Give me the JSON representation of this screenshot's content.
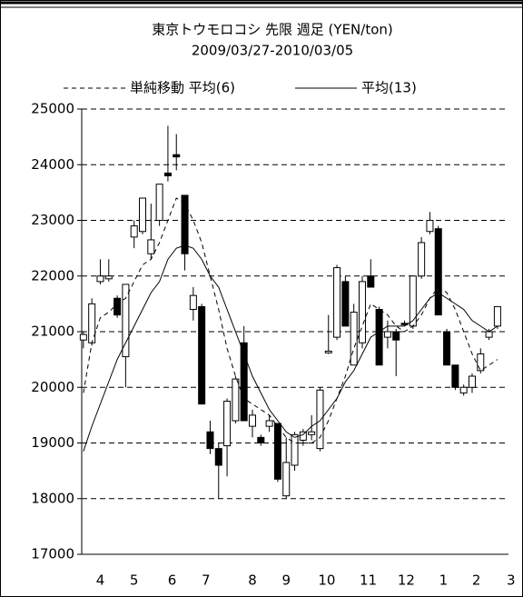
{
  "chart_data": {
    "type": "candlestick",
    "title": "東京トウモロコシ 先限 週足 (YEN/ton)",
    "subtitle": "2009/03/27-2010/03/05",
    "ylim": [
      17000,
      25000
    ],
    "yticks": [
      17000,
      18000,
      19000,
      20000,
      21000,
      22000,
      23000,
      24000,
      25000
    ],
    "xlim": [
      -0.2,
      50.3
    ],
    "xticks": [
      {
        "value": 2,
        "label": "4"
      },
      {
        "value": 6,
        "label": "5"
      },
      {
        "value": 10.5,
        "label": "6"
      },
      {
        "value": 14.5,
        "label": "7"
      },
      {
        "value": 20,
        "label": "8"
      },
      {
        "value": 24,
        "label": "9"
      },
      {
        "value": 28.8,
        "label": "10"
      },
      {
        "value": 33.7,
        "label": "11"
      },
      {
        "value": 38.2,
        "label": "12"
      },
      {
        "value": 42.6,
        "label": "1"
      },
      {
        "value": 46.5,
        "label": "2"
      },
      {
        "value": 50.6,
        "label": "3"
      }
    ],
    "grid": true,
    "up_color": "#ffffff",
    "down_color": "#000000",
    "open": [
      20850,
      20800,
      21900,
      21950,
      21600,
      20550,
      22700,
      22800,
      22400,
      23000,
      23850,
      24180,
      23450,
      21400,
      21450,
      19200,
      18900,
      18950,
      19400,
      20800,
      19300,
      19100,
      19300,
      19350,
      18050,
      18600,
      19050,
      19150,
      18900,
      20620,
      20900,
      21900,
      20400,
      20800,
      22000,
      21400,
      20900,
      21000,
      21150,
      21100,
      22000,
      22800,
      22850,
      21000,
      20400,
      19900,
      20000,
      20300,
      20900,
      21100
    ],
    "high": [
      21000,
      21600,
      22300,
      22300,
      21650,
      21850,
      23000,
      23400,
      23300,
      23650,
      24700,
      24550,
      23450,
      21800,
      21500,
      19400,
      19000,
      19800,
      20200,
      21100,
      19600,
      19150,
      19500,
      19350,
      19100,
      19200,
      19250,
      19500,
      20000,
      21300,
      22200,
      22000,
      21500,
      22000,
      22300,
      21450,
      21200,
      21050,
      21200,
      22000,
      22700,
      23150,
      22900,
      21050,
      20400,
      20050,
      20250,
      20700,
      21050,
      21450
    ],
    "low": [
      20700,
      20750,
      21850,
      21900,
      21250,
      20000,
      22500,
      22750,
      22300,
      22900,
      23700,
      23900,
      22100,
      21200,
      19700,
      18800,
      18000,
      18400,
      19350,
      19400,
      19100,
      18950,
      19200,
      18300,
      18000,
      18500,
      18950,
      19050,
      18850,
      20600,
      20850,
      21100,
      20400,
      20700,
      21800,
      20400,
      20700,
      20200,
      21100,
      21050,
      21950,
      22750,
      21300,
      20400,
      19950,
      19850,
      19900,
      20250,
      20850,
      21050
    ],
    "close": [
      20950,
      21500,
      22000,
      22000,
      21300,
      21850,
      22900,
      23400,
      22650,
      23650,
      23800,
      24140,
      22400,
      21650,
      19700,
      18900,
      18600,
      19750,
      20150,
      19400,
      19500,
      19000,
      19400,
      18350,
      18650,
      19150,
      19200,
      19200,
      19950,
      20650,
      22150,
      21100,
      21350,
      21900,
      21800,
      20400,
      21000,
      20850,
      21140,
      22000,
      22600,
      23000,
      21300,
      20400,
      20000,
      20000,
      20200,
      20600,
      21000,
      21450
    ],
    "series": [
      {
        "name": "単純移動 平均(6)",
        "color": "#000000",
        "dash": true,
        "values": [
          19900,
          20800,
          21250,
          21350,
          21500,
          21600,
          21900,
          22200,
          22300,
          22600,
          23000,
          23400,
          23300,
          23000,
          22600,
          22000,
          21400,
          20700,
          20200,
          19800,
          19700,
          19600,
          19500,
          19300,
          19100,
          19000,
          19000,
          19000,
          19100,
          19400,
          19800,
          20200,
          20700,
          21100,
          21500,
          21400,
          21300,
          21100,
          21000,
          21100,
          21300,
          21600,
          21800,
          21700,
          21400,
          21000,
          20600,
          20300,
          20400,
          20500
        ]
      },
      {
        "name": "平均(13)",
        "color": "#000000",
        "dash": false,
        "values": [
          18850,
          19300,
          19700,
          20100,
          20500,
          20800,
          21100,
          21400,
          21700,
          21900,
          22300,
          22500,
          22550,
          22500,
          22300,
          22000,
          21800,
          21400,
          21000,
          20600,
          20200,
          19900,
          19600,
          19400,
          19200,
          19100,
          19150,
          19300,
          19400,
          19600,
          19800,
          20100,
          20300,
          20600,
          20900,
          21000,
          21100,
          21100,
          21100,
          21200,
          21400,
          21600,
          21700,
          21600,
          21500,
          21400,
          21200,
          21100,
          21000,
          21100
        ]
      }
    ]
  }
}
